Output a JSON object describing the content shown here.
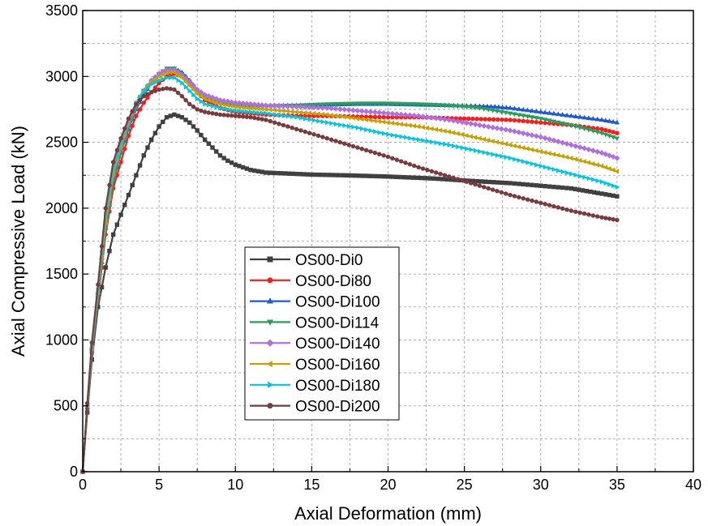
{
  "chart_data": {
    "type": "line",
    "title": "",
    "xlabel": "Axial Deformation (mm)",
    "ylabel": "Axial Compressive Load (kN)",
    "xlim": [
      0,
      40
    ],
    "ylim": [
      0,
      3500
    ],
    "xticks": [
      0,
      5,
      10,
      15,
      20,
      25,
      30,
      35,
      40
    ],
    "yticks": [
      0,
      500,
      1000,
      1500,
      2000,
      2500,
      3000,
      3500
    ],
    "grid": true,
    "legend_position": "center-left",
    "series": [
      {
        "name": "OS00-Di0",
        "color": "#404040",
        "marker": "square",
        "x": [
          0,
          0.3,
          0.6,
          1.0,
          1.5,
          2.0,
          2.5,
          3.0,
          3.5,
          4.0,
          4.5,
          5.0,
          5.5,
          6.0,
          6.5,
          7.0,
          7.5,
          8.0,
          8.5,
          9.0,
          9.5,
          10.0,
          11,
          12,
          13,
          14,
          15,
          17,
          20,
          23,
          25,
          28,
          30,
          32,
          33,
          34,
          35
        ],
        "y": [
          0,
          450,
          850,
          1250,
          1550,
          1800,
          1950,
          2100,
          2250,
          2400,
          2520,
          2620,
          2690,
          2710,
          2690,
          2650,
          2590,
          2520,
          2460,
          2400,
          2360,
          2330,
          2290,
          2270,
          2265,
          2260,
          2255,
          2250,
          2240,
          2225,
          2210,
          2190,
          2170,
          2150,
          2130,
          2110,
          2090
        ]
      },
      {
        "name": "OS00-Di80",
        "color": "#ff1a1a",
        "marker": "circle",
        "x": [
          0,
          0.3,
          0.6,
          1.0,
          1.5,
          2.0,
          2.5,
          3.0,
          3.5,
          4.0,
          4.5,
          5.0,
          5.5,
          6.0,
          6.5,
          7.0,
          7.5,
          8.0,
          9,
          10,
          11,
          12,
          14,
          16,
          18,
          20,
          22,
          25,
          28,
          30,
          32,
          34,
          35
        ],
        "y": [
          0,
          480,
          900,
          1300,
          1800,
          2150,
          2350,
          2550,
          2700,
          2800,
          2880,
          2950,
          3000,
          3020,
          3000,
          2950,
          2880,
          2820,
          2760,
          2730,
          2720,
          2710,
          2700,
          2700,
          2695,
          2690,
          2690,
          2680,
          2670,
          2650,
          2630,
          2600,
          2570
        ]
      },
      {
        "name": "OS00-Di100",
        "color": "#1c5bd6",
        "marker": "triangle-up",
        "x": [
          0,
          0.3,
          0.6,
          1.0,
          1.5,
          2.0,
          2.5,
          3.0,
          3.5,
          4.0,
          4.5,
          5.0,
          5.5,
          6.0,
          6.5,
          7.0,
          7.5,
          8.0,
          9,
          10,
          11,
          12,
          14,
          16,
          18,
          20,
          22,
          24,
          26,
          27,
          28,
          30,
          32,
          34,
          35
        ],
        "y": [
          0,
          490,
          920,
          1330,
          1850,
          2200,
          2420,
          2600,
          2750,
          2860,
          2950,
          3010,
          3050,
          3060,
          3030,
          2970,
          2900,
          2850,
          2810,
          2790,
          2780,
          2780,
          2780,
          2785,
          2790,
          2790,
          2785,
          2780,
          2775,
          2770,
          2760,
          2730,
          2700,
          2670,
          2650
        ]
      },
      {
        "name": "OS00-Di114",
        "color": "#26a05a",
        "marker": "triangle-down",
        "x": [
          0,
          0.3,
          0.6,
          1.0,
          1.5,
          2.0,
          2.5,
          3.0,
          3.5,
          4.0,
          4.5,
          5.0,
          5.5,
          6.0,
          6.5,
          7.0,
          7.5,
          8.0,
          9,
          10,
          11,
          12,
          14,
          16,
          18,
          20,
          22,
          24,
          26,
          28,
          30,
          32,
          34,
          35
        ],
        "y": [
          0,
          490,
          910,
          1320,
          1830,
          2200,
          2420,
          2610,
          2760,
          2870,
          2960,
          3020,
          3060,
          3060,
          3020,
          2960,
          2890,
          2840,
          2800,
          2780,
          2775,
          2775,
          2780,
          2790,
          2795,
          2795,
          2790,
          2780,
          2760,
          2720,
          2680,
          2630,
          2570,
          2530
        ]
      },
      {
        "name": "OS00-Di140",
        "color": "#b06ee0",
        "marker": "diamond",
        "x": [
          0,
          0.3,
          0.6,
          1.0,
          1.5,
          2.0,
          2.5,
          3.0,
          3.5,
          4.0,
          4.5,
          5.0,
          5.5,
          6.0,
          6.5,
          7.0,
          7.5,
          8.0,
          9,
          10,
          11,
          12,
          14,
          16,
          18,
          20,
          22,
          24,
          26,
          28,
          30,
          32,
          34,
          35
        ],
        "y": [
          0,
          500,
          930,
          1350,
          1880,
          2250,
          2460,
          2640,
          2790,
          2890,
          2970,
          3020,
          3050,
          3050,
          3010,
          2960,
          2900,
          2860,
          2820,
          2800,
          2790,
          2780,
          2770,
          2760,
          2740,
          2720,
          2700,
          2670,
          2630,
          2590,
          2540,
          2480,
          2420,
          2380
        ]
      },
      {
        "name": "OS00-Di160",
        "color": "#c7a100",
        "marker": "triangle-left",
        "x": [
          0,
          0.3,
          0.6,
          1.0,
          1.5,
          2.0,
          2.5,
          3.0,
          3.5,
          4.0,
          4.5,
          5.0,
          5.5,
          6.0,
          6.5,
          7.0,
          7.5,
          8.0,
          9,
          10,
          11,
          12,
          14,
          16,
          18,
          20,
          22,
          24,
          26,
          28,
          30,
          32,
          34,
          35
        ],
        "y": [
          0,
          500,
          940,
          1360,
          1900,
          2270,
          2480,
          2660,
          2800,
          2900,
          2960,
          3000,
          3030,
          3030,
          2990,
          2930,
          2870,
          2830,
          2790,
          2770,
          2760,
          2750,
          2730,
          2710,
          2680,
          2650,
          2620,
          2580,
          2530,
          2480,
          2430,
          2380,
          2320,
          2280
        ]
      },
      {
        "name": "OS00-Di180",
        "color": "#00c8e0",
        "marker": "triangle-right",
        "x": [
          0,
          0.3,
          0.6,
          1.0,
          1.5,
          2.0,
          2.5,
          3.0,
          3.5,
          4.0,
          4.5,
          5.0,
          5.5,
          6.0,
          6.5,
          7.0,
          7.5,
          8.0,
          9,
          10,
          11,
          12,
          14,
          16,
          18,
          20,
          22,
          24,
          26,
          28,
          30,
          32,
          34,
          35
        ],
        "y": [
          0,
          500,
          950,
          1380,
          1950,
          2300,
          2500,
          2670,
          2800,
          2890,
          2940,
          2970,
          2990,
          2990,
          2950,
          2890,
          2830,
          2790,
          2760,
          2740,
          2730,
          2720,
          2690,
          2650,
          2610,
          2560,
          2520,
          2480,
          2430,
          2380,
          2320,
          2260,
          2200,
          2160
        ]
      },
      {
        "name": "OS00-Di200",
        "color": "#7a3b3b",
        "marker": "circle",
        "x": [
          0,
          0.3,
          0.6,
          1.0,
          1.5,
          2.0,
          2.5,
          3.0,
          3.5,
          4.0,
          4.5,
          5.0,
          5.5,
          6.0,
          6.5,
          7.0,
          7.5,
          8.0,
          9,
          10,
          11,
          12,
          14,
          16,
          18,
          20,
          22,
          24,
          26,
          28,
          30,
          32,
          34,
          35
        ],
        "y": [
          0,
          520,
          980,
          1420,
          2000,
          2350,
          2530,
          2680,
          2790,
          2850,
          2880,
          2900,
          2910,
          2900,
          2850,
          2790,
          2750,
          2730,
          2710,
          2700,
          2690,
          2670,
          2600,
          2530,
          2460,
          2390,
          2310,
          2240,
          2170,
          2100,
          2040,
          1980,
          1930,
          1910
        ]
      }
    ]
  }
}
